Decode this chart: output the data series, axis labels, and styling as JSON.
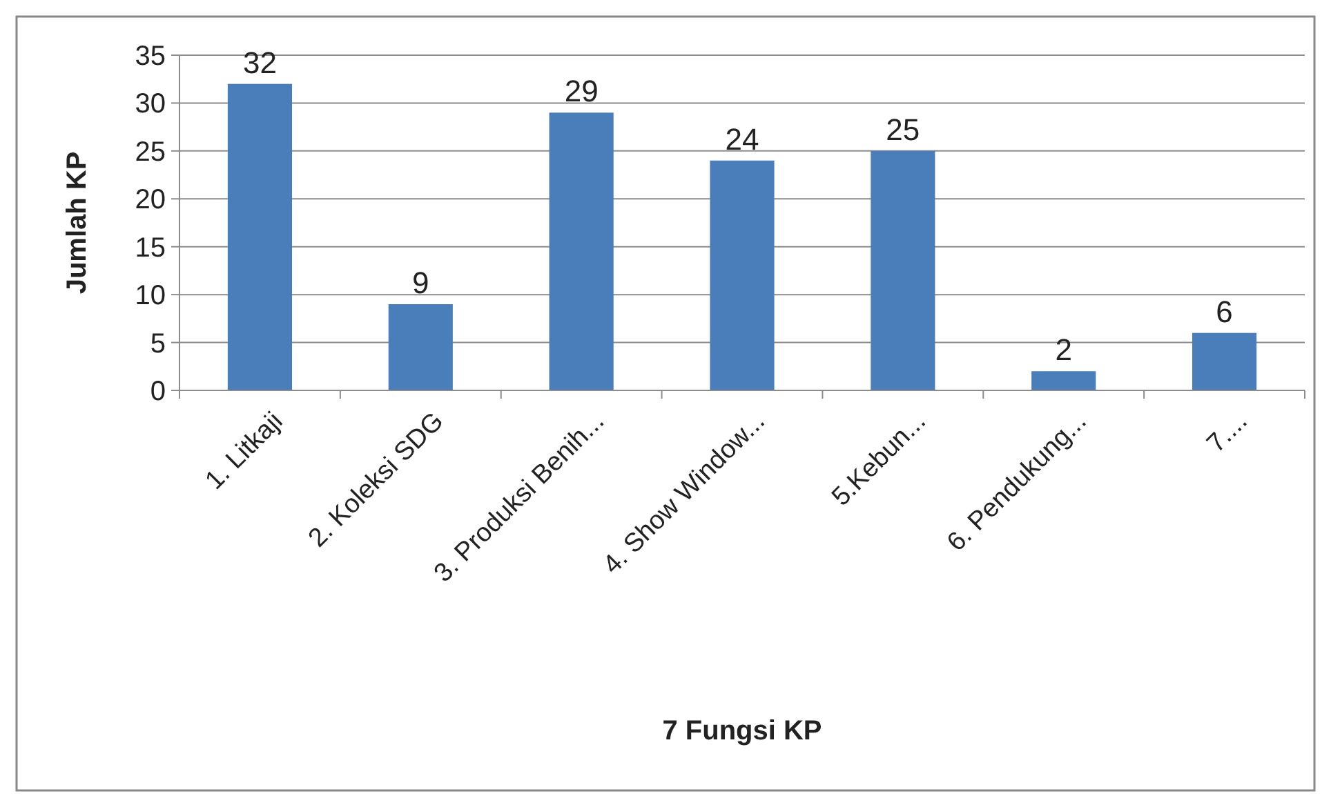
{
  "chart_data": {
    "type": "bar",
    "xlabel": "7 Fungsi KP",
    "ylabel": "Jumlah KP",
    "categories": [
      "1. Litkaji",
      "2. Koleksi SDG",
      "3. Produksi Benih...",
      "4. Show Window...",
      "5.Kebun...",
      "6. Pendukung...",
      "7...."
    ],
    "values": [
      32,
      9,
      29,
      24,
      25,
      2,
      6
    ],
    "color": "#4a7ebb",
    "ylim": [
      0,
      35
    ],
    "yticks": [
      0,
      5,
      10,
      15,
      20,
      25,
      30,
      35
    ],
    "grid": "y",
    "data_labels": true
  }
}
